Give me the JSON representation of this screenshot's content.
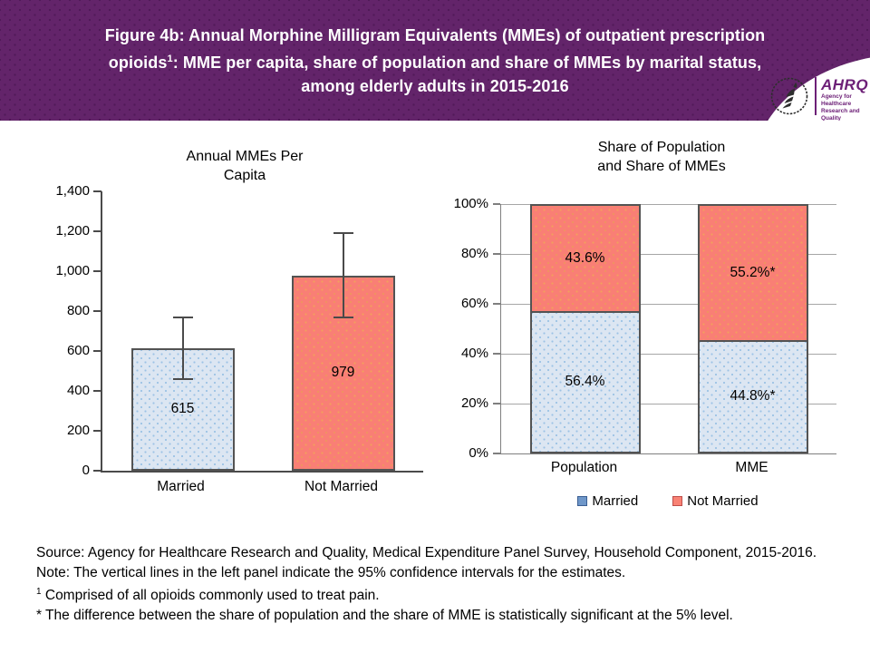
{
  "header": {
    "title_line1": "Figure 4b: Annual Morphine Milligram Equivalents (MMEs) of outpatient prescription",
    "title_line2_pre": "opioids",
    "title_line2_sup": "1",
    "title_line2_post": ": MME per capita, share of population and share of MMEs by marital status,",
    "title_line3": "among elderly adults in 2015-2016",
    "logo": {
      "org_abbr": "AHRQ",
      "org_tag_line1": "Agency for Healthcare",
      "org_tag_line2": "Research and Quality",
      "hhs_icon": "hhs-eagle-logo"
    }
  },
  "chart_data": [
    {
      "type": "bar",
      "title": "Annual MMEs Per\nCapita",
      "categories": [
        "Married",
        "Not Married"
      ],
      "values": [
        615,
        979
      ],
      "data_labels": [
        "615",
        "979"
      ],
      "error_bars_95ci": [
        {
          "low": 460,
          "high": 770
        },
        {
          "low": 767,
          "high": 1191
        }
      ],
      "ylim": [
        0,
        1400
      ],
      "yticks": [
        "0",
        "200",
        "400",
        "600",
        "800",
        "1,000",
        "1,200",
        "1,400"
      ],
      "grid": false,
      "bar_fills": [
        "#dce6f2",
        "#f97f75"
      ]
    },
    {
      "type": "stacked-bar",
      "title": "Share of Population\nand Share of MMEs",
      "categories": [
        "Population",
        "MME"
      ],
      "series": [
        {
          "name": "Married",
          "values": [
            56.4,
            44.8
          ],
          "labels": [
            "56.4%",
            "44.8%*"
          ],
          "fill": "#dce6f2"
        },
        {
          "name": "Not Married",
          "values": [
            43.6,
            55.2
          ],
          "labels": [
            "43.6%",
            "55.2%*"
          ],
          "fill": "#f97f75"
        }
      ],
      "ylim": [
        0,
        100
      ],
      "yticks": [
        "0%",
        "20%",
        "40%",
        "60%",
        "80%",
        "100%"
      ],
      "grid": true,
      "legend_position": "bottom",
      "legend_items": [
        "Married",
        "Not Married"
      ]
    }
  ],
  "colors": {
    "header_background": "#63246a",
    "married_fill": "#dce6f2",
    "married_dot": "#9cc2e5",
    "not_married_fill": "#f97f75",
    "not_married_dot": "#f1a15c",
    "bar_border": "#535353",
    "left_axis": "#4a4a4a",
    "right_axis": "#7f7f7f",
    "gridline": "#a6a6a6",
    "logo_purple": "#6d2077"
  },
  "notes": {
    "source": "Source: Agency for Healthcare Research and Quality, Medical Expenditure Panel Survey, Household Component, 2015-2016.",
    "note": "Note: The vertical lines in the left panel indicate the 95% confidence intervals for the estimates.",
    "footnote1_sup": "1",
    "footnote1_text": " Comprised of all opioids commonly used to treat pain.",
    "footnote_star": "* The difference between the share of population and the share of MME is statistically significant at the 5% level."
  }
}
